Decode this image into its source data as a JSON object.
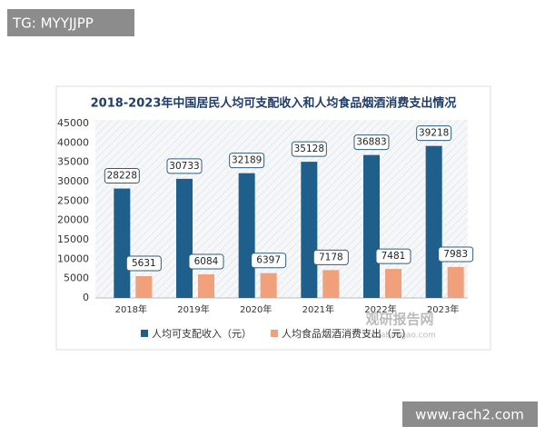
{
  "watermarks": [
    "TG: MYYJJPP",
    "www.rach2.com"
  ],
  "chart_data": {
    "type": "bar",
    "title": "2018-2023年中国居民人均可支配收入和人均食品烟酒消费支出情况",
    "categories": [
      "2018年",
      "2019年",
      "2020年",
      "2021年",
      "2022年",
      "2023年"
    ],
    "series": [
      {
        "name": "人均可支配收入（元）",
        "color": "#1f5f8b",
        "values": [
          28228,
          30733,
          32189,
          35128,
          36883,
          39218
        ]
      },
      {
        "name": "人均食品烟酒消费支出（元）",
        "color": "#f0a07a",
        "values": [
          5631,
          6084,
          6397,
          7178,
          7481,
          7983
        ]
      }
    ],
    "ylim": [
      0,
      45000
    ],
    "yticks": [
      0,
      5000,
      10000,
      15000,
      20000,
      25000,
      30000,
      35000,
      40000,
      45000
    ],
    "legend": "bottom",
    "source": [
      "观研报告网",
      "chinabaogao.com"
    ]
  }
}
